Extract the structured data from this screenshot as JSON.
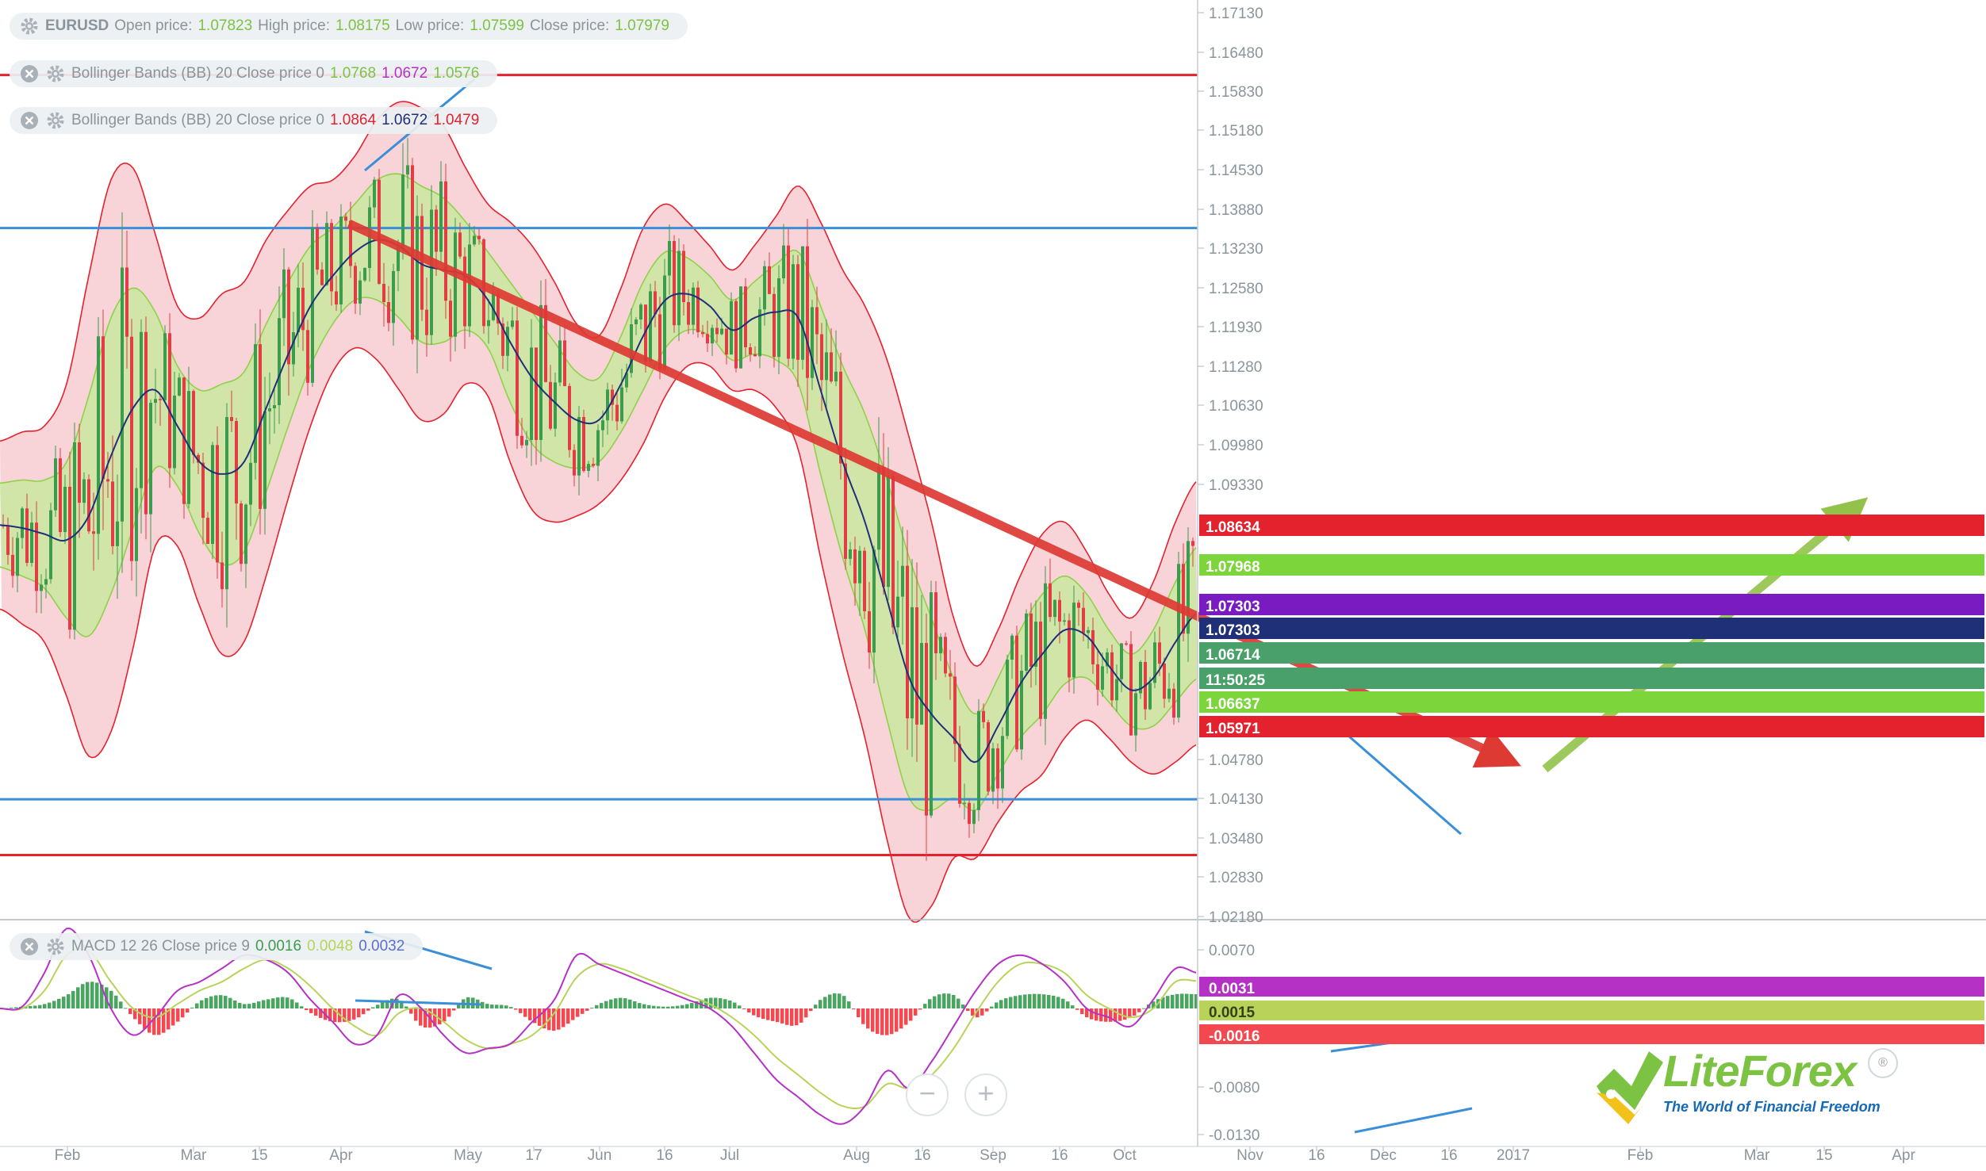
{
  "header": {
    "symbol": "EURUSD",
    "open_label": "Open price:",
    "open_value": "1.07823",
    "high_label": "High price:",
    "high_value": "1.08175",
    "low_label": "Low price:",
    "low_value": "1.07599",
    "close_label": "Close price:",
    "close_value": "1.07979"
  },
  "indicators": [
    {
      "label": "Bollinger Bands (BB) 20 Close price 0",
      "v1": "1.0768",
      "v2": "1.0672",
      "v3": "1.0576"
    },
    {
      "label": "Bollinger Bands (BB) 20 Close price 0",
      "v1": "1.0864",
      "v2": "1.0672",
      "v3": "1.0479"
    },
    {
      "label": "MACD 12 26 Close price 9",
      "v1": "0.0016",
      "v2": "0.0048",
      "v3": "0.0032"
    }
  ],
  "controls": {
    "zoom_out": "−",
    "zoom_in": "+"
  },
  "logo": {
    "name": "LiteForex",
    "registered": "®",
    "tagline": "The World of Financial Freedom"
  },
  "colors": {
    "bull": "#3d9b4e",
    "bear": "#e23c44",
    "bb_outer": "#f6c4c9",
    "bb_inner": "#cfe6a6",
    "support": "#3a8fd8",
    "resistance": "#e4222e",
    "trend_down": "#dd3a33",
    "trend_up": "#92c24a"
  },
  "chart_data": [
    {
      "type": "candlestick",
      "symbol": "EURUSD",
      "ylim": [
        1.022,
        1.175
      ],
      "y_ticks": [
        "1.17130",
        "1.16480",
        "1.15830",
        "1.15180",
        "1.14530",
        "1.13880",
        "1.13230",
        "1.12580",
        "1.11930",
        "1.11280",
        "1.10630",
        "1.09980",
        "1.09330",
        "1.08634",
        "1.07968",
        "1.07303",
        "1.07303",
        "1.06714",
        "11:50:25",
        "1.06637",
        "1.05971",
        "1.04780",
        "1.04130",
        "1.03480",
        "1.02830",
        "1.02180"
      ],
      "x_ticks": [
        "Feb",
        "Mar",
        "15",
        "Apr",
        "May",
        "17",
        "Jun",
        "16",
        "Jul",
        "Aug",
        "16",
        "Sep",
        "16",
        "Oct",
        "Nov",
        "16",
        "Dec",
        "16",
        "2017",
        "Feb",
        "Mar",
        "15",
        "Apr"
      ],
      "price_badges": [
        {
          "value": "1.08634",
          "color": "#e4222e"
        },
        {
          "value": "1.07968",
          "color": "#7cd53a"
        },
        {
          "value": "1.07303",
          "color": "#7a1bc2"
        },
        {
          "value": "1.07303",
          "color": "#1f2f78"
        },
        {
          "value": "1.06714",
          "color": "#4aa06a"
        },
        {
          "value": "11:50:25",
          "color": "#4aa06a"
        },
        {
          "value": "1.06637",
          "color": "#7cd53a"
        },
        {
          "value": "1.05971",
          "color": "#e4222e"
        }
      ],
      "ohlc_last": {
        "open": 1.07823,
        "high": 1.08175,
        "low": 1.07599,
        "close": 1.07979
      },
      "middle_band": [
        1.0875,
        1.087,
        1.086,
        1.085,
        1.089,
        1.099,
        1.107,
        1.11,
        1.104,
        1.098,
        1.096,
        1.098,
        1.107,
        1.116,
        1.124,
        1.129,
        1.133,
        1.135,
        1.134,
        1.131,
        1.13,
        1.129,
        1.125,
        1.118,
        1.112,
        1.108,
        1.105,
        1.105,
        1.111,
        1.119,
        1.125,
        1.126,
        1.124,
        1.12,
        1.122,
        1.123,
        1.122,
        1.11,
        1.098,
        1.088,
        1.075,
        1.062,
        1.056,
        1.052,
        1.048,
        1.054,
        1.061,
        1.066,
        1.07,
        1.069,
        1.064,
        1.06,
        1.062,
        1.068,
        1.073
      ],
      "inner_band_width": [
        0.007,
        0.008,
        0.009,
        0.013,
        0.02,
        0.023,
        0.02,
        0.013,
        0.01,
        0.012,
        0.015,
        0.015,
        0.014,
        0.012,
        0.01,
        0.008,
        0.008,
        0.01,
        0.012,
        0.013,
        0.012,
        0.009,
        0.008,
        0.01,
        0.011,
        0.01,
        0.008,
        0.007,
        0.008,
        0.009,
        0.008,
        0.006,
        0.005,
        0.005,
        0.006,
        0.008,
        0.011,
        0.014,
        0.016,
        0.018,
        0.02,
        0.02,
        0.016,
        0.01,
        0.008,
        0.008,
        0.009,
        0.01,
        0.009,
        0.007,
        0.006,
        0.006,
        0.008,
        0.01,
        0.011
      ],
      "outer_band_width": [
        0.014,
        0.016,
        0.018,
        0.026,
        0.04,
        0.046,
        0.04,
        0.026,
        0.02,
        0.024,
        0.03,
        0.03,
        0.028,
        0.024,
        0.02,
        0.016,
        0.016,
        0.02,
        0.024,
        0.026,
        0.024,
        0.018,
        0.016,
        0.02,
        0.022,
        0.02,
        0.016,
        0.014,
        0.016,
        0.018,
        0.016,
        0.012,
        0.01,
        0.01,
        0.012,
        0.016,
        0.022,
        0.028,
        0.032,
        0.036,
        0.04,
        0.04,
        0.032,
        0.02,
        0.016,
        0.016,
        0.018,
        0.02,
        0.018,
        0.014,
        0.012,
        0.012,
        0.016,
        0.02,
        0.022
      ],
      "horizontal_levels": [
        {
          "value": 1.1625,
          "kind": "resistance"
        },
        {
          "value": 1.137,
          "kind": "support"
        },
        {
          "value": 1.0418,
          "kind": "support"
        },
        {
          "value": 1.0325,
          "kind": "resistance"
        }
      ]
    },
    {
      "type": "bar+line",
      "name": "MACD 12 26 Close price 9",
      "ylim": [
        -0.015,
        0.01
      ],
      "y_ticks": [
        "0.0070",
        "0.0031",
        "0.0015",
        "-0.0016",
        "-0.0080",
        "-0.0130"
      ],
      "histogram": [
        0.0,
        0.0002,
        0.0005,
        0.0015,
        0.003,
        0.002,
        -0.001,
        -0.003,
        -0.0015,
        0.0008,
        0.0015,
        0.0005,
        0.001,
        0.0012,
        -0.0005,
        -0.0015,
        -0.0012,
        0.0004,
        0.001,
        -0.002,
        -0.0015,
        0.0012,
        0.0005,
        0.0002,
        -0.0015,
        -0.0025,
        -0.001,
        0.0005,
        0.0012,
        0.0005,
        0.0002,
        0.0005,
        0.0012,
        0.0008,
        -0.0008,
        -0.0015,
        -0.0018,
        0.001,
        0.0015,
        -0.002,
        -0.003,
        -0.0015,
        0.0012,
        0.0015,
        -0.001,
        0.0008,
        0.0015,
        0.0016,
        0.001,
        -0.001,
        -0.0015,
        -0.001,
        0.0008,
        0.0016,
        0.0016
      ],
      "macd_line": [
        0.0,
        0.0002,
        0.004,
        0.009,
        0.006,
        0.0,
        -0.003,
        -0.001,
        0.002,
        0.003,
        0.0045,
        0.006,
        0.0055,
        0.004,
        0.001,
        -0.0015,
        -0.004,
        -0.003,
        0.0015,
        0.0,
        -0.003,
        -0.005,
        -0.0045,
        -0.004,
        -0.0015,
        0.001,
        0.006,
        0.005,
        0.004,
        0.003,
        0.002,
        0.001,
        0.0,
        -0.002,
        -0.005,
        -0.008,
        -0.01,
        -0.012,
        -0.013,
        -0.011,
        -0.007,
        -0.009,
        -0.006,
        -0.002,
        0.002,
        0.005,
        0.006,
        0.005,
        0.003,
        0.0,
        -0.001,
        -0.002,
        0.001,
        0.0045,
        0.004
      ],
      "signal_line": [
        0.0,
        0.0,
        0.002,
        0.006,
        0.0065,
        0.003,
        0.0,
        -0.001,
        0.0005,
        0.002,
        0.003,
        0.0045,
        0.0055,
        0.0045,
        0.0025,
        0.0,
        -0.002,
        -0.003,
        -0.0005,
        0.0,
        -0.0015,
        -0.0035,
        -0.0045,
        -0.004,
        -0.003,
        -0.0005,
        0.0035,
        0.005,
        0.0045,
        0.0035,
        0.0025,
        0.0015,
        0.0005,
        -0.001,
        -0.003,
        -0.0055,
        -0.0075,
        -0.0095,
        -0.011,
        -0.011,
        -0.0085,
        -0.009,
        -0.0075,
        -0.0045,
        -0.0005,
        0.003,
        0.005,
        0.005,
        0.004,
        0.0015,
        0.0,
        -0.001,
        0.0,
        0.003,
        0.0031
      ]
    }
  ]
}
